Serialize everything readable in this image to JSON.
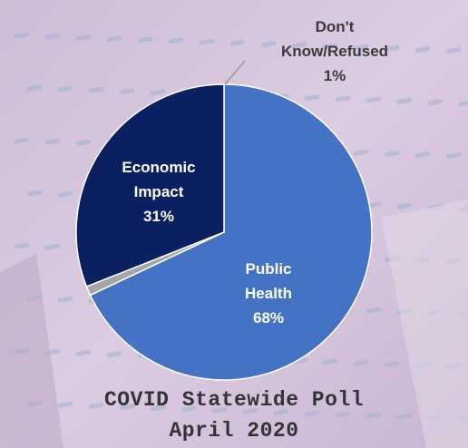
{
  "chart_data": {
    "type": "pie",
    "slices": [
      {
        "label_lines": [
          "Public",
          "Health"
        ],
        "value": 68,
        "value_label": "68%",
        "color": "#4472c4",
        "text_color": "#ffffff"
      },
      {
        "label_lines": [
          "Don't",
          "Know/Refused"
        ],
        "value": 1,
        "value_label": "1%",
        "color": "#a5a5a5",
        "text_color": "#3a3a3a"
      },
      {
        "label_lines": [
          "Economic",
          "Impact"
        ],
        "value": 31,
        "value_label": "31%",
        "color": "#0a2060",
        "text_color": "#ffffff"
      }
    ],
    "title_lines": [
      "COVID Statewide Poll",
      "April 2020"
    ],
    "legend": "none"
  }
}
